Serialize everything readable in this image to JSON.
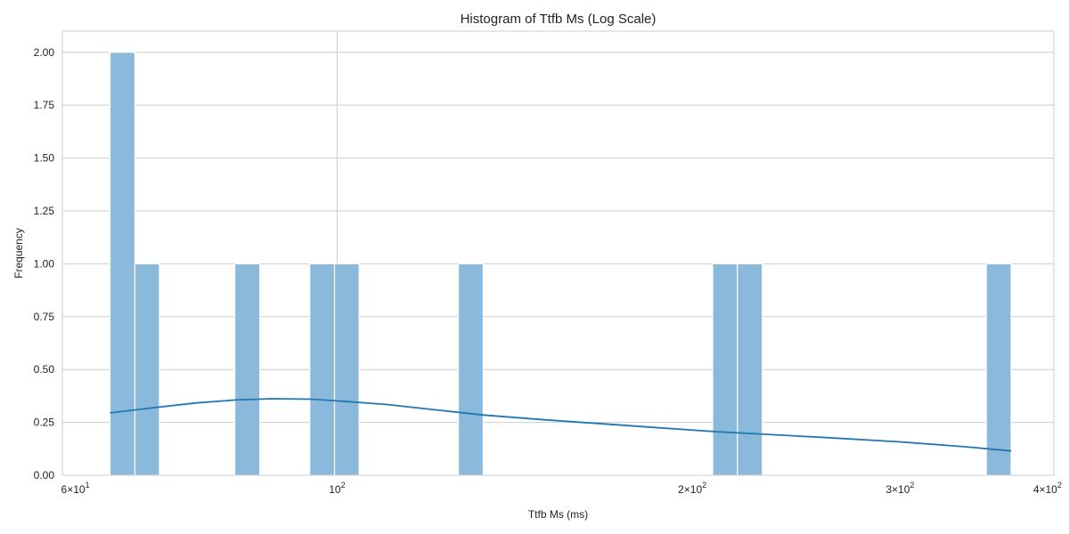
{
  "chart_data": {
    "type": "bar",
    "title": "Histogram of Ttfb Ms (Log Scale)",
    "xlabel": "Ttfb Ms (ms)",
    "ylabel": "Frequency",
    "x_scale": "log",
    "xlim": [
      58.5,
      405
    ],
    "ylim": [
      0,
      2.1
    ],
    "grid": true,
    "bins": [
      {
        "x0": 64.2,
        "x1": 67.4,
        "count": 2
      },
      {
        "x0": 67.4,
        "x1": 70.7,
        "count": 1
      },
      {
        "x0": 81.9,
        "x1": 86.0,
        "count": 1
      },
      {
        "x0": 94.8,
        "x1": 99.5,
        "count": 1
      },
      {
        "x0": 99.5,
        "x1": 104.4,
        "count": 1
      },
      {
        "x0": 126.7,
        "x1": 133.0,
        "count": 1
      },
      {
        "x0": 208.1,
        "x1": 218.4,
        "count": 1
      },
      {
        "x0": 218.4,
        "x1": 229.3,
        "count": 1
      },
      {
        "x0": 355.0,
        "x1": 372.6,
        "count": 1
      }
    ],
    "kde": {
      "x": [
        64.2,
        70,
        76,
        82,
        88,
        95,
        100,
        110,
        120,
        133,
        150,
        170,
        190,
        210,
        230,
        260,
        300,
        340,
        372.6
      ],
      "y": [
        0.295,
        0.32,
        0.342,
        0.356,
        0.362,
        0.36,
        0.352,
        0.335,
        0.312,
        0.285,
        0.262,
        0.241,
        0.222,
        0.206,
        0.194,
        0.178,
        0.158,
        0.135,
        0.115
      ]
    },
    "x_ticks": [
      {
        "value": 60,
        "base": "6",
        "mult": "×",
        "pow": "10",
        "exp": "1"
      },
      {
        "value": 100,
        "base": "",
        "mult": "",
        "pow": "10",
        "exp": "2"
      },
      {
        "value": 200,
        "base": "2",
        "mult": "×",
        "pow": "10",
        "exp": "2"
      },
      {
        "value": 300,
        "base": "3",
        "mult": "×",
        "pow": "10",
        "exp": "2"
      },
      {
        "value": 400,
        "base": "4",
        "mult": "×",
        "pow": "10",
        "exp": "2"
      }
    ],
    "x_major_grid": [
      100
    ],
    "y_ticks": [
      "0.00",
      "0.25",
      "0.50",
      "0.75",
      "1.00",
      "1.25",
      "1.50",
      "1.75",
      "2.00"
    ],
    "colors": {
      "bar_fill": "#8bb9db",
      "bar_edge": "#ffffff",
      "kde_line": "#1f77b4",
      "grid": "#cccccc",
      "frame": "#cccccc"
    }
  }
}
